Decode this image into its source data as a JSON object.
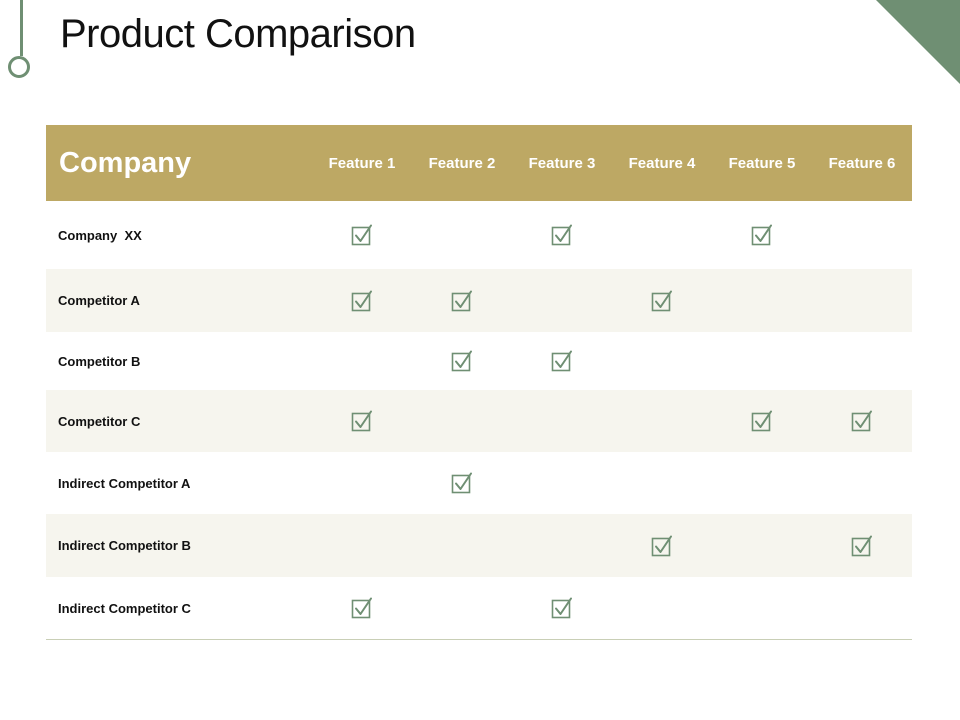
{
  "title": "Product Comparison",
  "table": {
    "company_header": "Company",
    "features": [
      "Feature 1",
      "Feature 2",
      "Feature 3",
      "Feature 4",
      "Feature 5",
      "Feature 6"
    ],
    "check_icon": "checkbox-checked-icon",
    "accent_color": "#bda864",
    "check_color": "#6f8f73",
    "rows": [
      {
        "label": "Company  XX",
        "checks": [
          true,
          false,
          true,
          false,
          true,
          false
        ]
      },
      {
        "label": "Competitor A",
        "checks": [
          true,
          true,
          false,
          true,
          false,
          false
        ]
      },
      {
        "label": "Competitor B",
        "checks": [
          false,
          true,
          true,
          false,
          false,
          false
        ]
      },
      {
        "label": "Competitor C",
        "checks": [
          true,
          false,
          false,
          false,
          true,
          true
        ]
      },
      {
        "label": "Indirect Competitor A",
        "checks": [
          false,
          true,
          false,
          false,
          false,
          false
        ]
      },
      {
        "label": "Indirect Competitor B",
        "checks": [
          false,
          false,
          false,
          true,
          false,
          true
        ]
      },
      {
        "label": "Indirect Competitor C",
        "checks": [
          true,
          false,
          true,
          false,
          false,
          false
        ]
      }
    ]
  }
}
